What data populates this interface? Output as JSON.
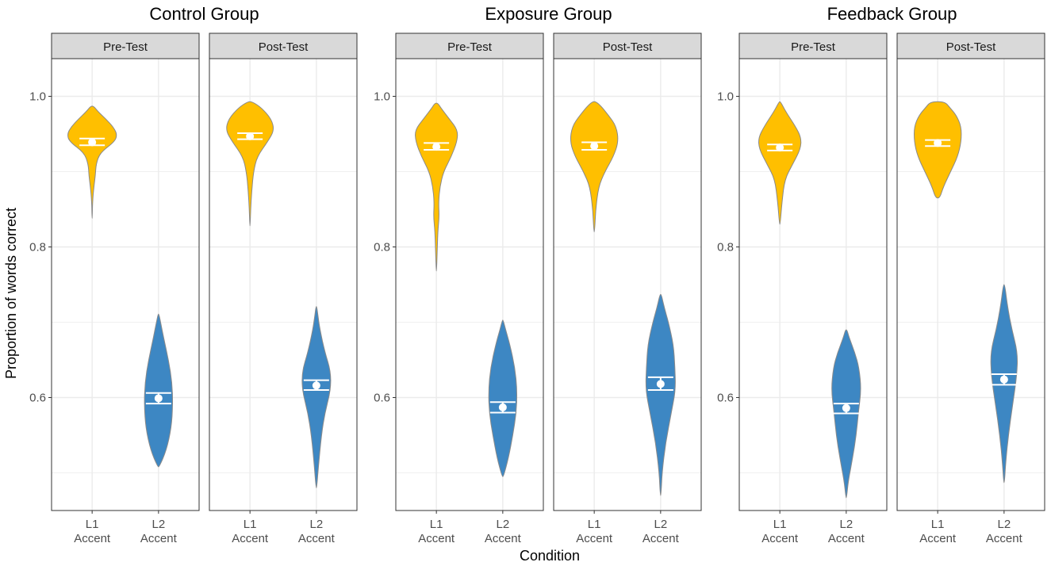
{
  "chart_data": {
    "type": "violin",
    "ylabel": "Proportion of words correct",
    "xlabel": "Condition",
    "ylim": [
      0.45,
      1.05
    ],
    "y_ticks": [
      {
        "value": 0.6,
        "label": "0.6"
      },
      {
        "value": 0.8,
        "label": "0.8"
      },
      {
        "value": 1.0,
        "label": "1.0"
      }
    ],
    "categories": [
      {
        "key": "L1",
        "line1": "L1",
        "line2": "Accent"
      },
      {
        "key": "L2",
        "line1": "L2",
        "line2": "Accent"
      }
    ],
    "colors": {
      "L1": "#FFBF00",
      "L2": "#3D87C3",
      "outline": "#8a8a8a",
      "strip": "#d9d9d9",
      "grid": "#ebebeb"
    },
    "groups": [
      {
        "title": "Control Group",
        "panels": [
          {
            "strip": "Pre-Test",
            "violins": [
              {
                "category": "L1",
                "mean": 0.939,
                "ci": [
                  0.935,
                  0.944
                ],
                "profile": [
                  [
                    0.838,
                    0.004
                  ],
                  [
                    0.86,
                    0.012
                  ],
                  [
                    0.88,
                    0.05
                  ],
                  [
                    0.895,
                    0.09
                  ],
                  [
                    0.91,
                    0.11
                  ],
                  [
                    0.925,
                    0.22
                  ],
                  [
                    0.94,
                    0.64
                  ],
                  [
                    0.95,
                    0.7
                  ],
                  [
                    0.96,
                    0.58
                  ],
                  [
                    0.97,
                    0.38
                  ],
                  [
                    0.98,
                    0.16
                  ],
                  [
                    0.987,
                    0.04
                  ]
                ]
              },
              {
                "category": "L2",
                "mean": 0.599,
                "ci": [
                  0.592,
                  0.606
                ],
                "profile": [
                  [
                    0.508,
                    0.02
                  ],
                  [
                    0.53,
                    0.22
                  ],
                  [
                    0.56,
                    0.36
                  ],
                  [
                    0.59,
                    0.4
                  ],
                  [
                    0.62,
                    0.38
                  ],
                  [
                    0.65,
                    0.28
                  ],
                  [
                    0.68,
                    0.14
                  ],
                  [
                    0.7,
                    0.06
                  ],
                  [
                    0.711,
                    0.01
                  ]
                ]
              }
            ]
          },
          {
            "strip": "Post-Test",
            "violins": [
              {
                "category": "L1",
                "mean": 0.947,
                "ci": [
                  0.943,
                  0.951
                ],
                "profile": [
                  [
                    0.828,
                    0.004
                  ],
                  [
                    0.85,
                    0.02
                  ],
                  [
                    0.875,
                    0.05
                  ],
                  [
                    0.9,
                    0.1
                  ],
                  [
                    0.92,
                    0.2
                  ],
                  [
                    0.94,
                    0.5
                  ],
                  [
                    0.955,
                    0.68
                  ],
                  [
                    0.97,
                    0.6
                  ],
                  [
                    0.985,
                    0.32
                  ],
                  [
                    0.993,
                    0.06
                  ]
                ]
              },
              {
                "category": "L2",
                "mean": 0.616,
                "ci": [
                  0.61,
                  0.623
                ],
                "profile": [
                  [
                    0.48,
                    0.01
                  ],
                  [
                    0.51,
                    0.06
                  ],
                  [
                    0.55,
                    0.14
                  ],
                  [
                    0.58,
                    0.24
                  ],
                  [
                    0.61,
                    0.4
                  ],
                  [
                    0.635,
                    0.4
                  ],
                  [
                    0.66,
                    0.24
                  ],
                  [
                    0.69,
                    0.1
                  ],
                  [
                    0.71,
                    0.04
                  ],
                  [
                    0.721,
                    0.01
                  ]
                ]
              }
            ]
          }
        ]
      },
      {
        "title": "Exposure Group",
        "panels": [
          {
            "strip": "Pre-Test",
            "violins": [
              {
                "category": "L1",
                "mean": 0.933,
                "ci": [
                  0.929,
                  0.938
                ],
                "profile": [
                  [
                    0.768,
                    0.004
                  ],
                  [
                    0.79,
                    0.02
                  ],
                  [
                    0.82,
                    0.04
                  ],
                  [
                    0.84,
                    0.08
                  ],
                  [
                    0.86,
                    0.06
                  ],
                  [
                    0.88,
                    0.1
                  ],
                  [
                    0.9,
                    0.2
                  ],
                  [
                    0.92,
                    0.42
                  ],
                  [
                    0.94,
                    0.58
                  ],
                  [
                    0.955,
                    0.6
                  ],
                  [
                    0.97,
                    0.36
                  ],
                  [
                    0.985,
                    0.12
                  ],
                  [
                    0.991,
                    0.04
                  ]
                ]
              },
              {
                "category": "L2",
                "mean": 0.587,
                "ci": [
                  0.58,
                  0.594
                ],
                "profile": [
                  [
                    0.495,
                    0.02
                  ],
                  [
                    0.52,
                    0.16
                  ],
                  [
                    0.55,
                    0.28
                  ],
                  [
                    0.58,
                    0.38
                  ],
                  [
                    0.61,
                    0.4
                  ],
                  [
                    0.64,
                    0.34
                  ],
                  [
                    0.67,
                    0.2
                  ],
                  [
                    0.69,
                    0.08
                  ],
                  [
                    0.703,
                    0.01
                  ]
                ]
              }
            ]
          },
          {
            "strip": "Post-Test",
            "violins": [
              {
                "category": "L1",
                "mean": 0.934,
                "ci": [
                  0.929,
                  0.939
                ],
                "profile": [
                  [
                    0.82,
                    0.01
                  ],
                  [
                    0.85,
                    0.04
                  ],
                  [
                    0.88,
                    0.12
                  ],
                  [
                    0.9,
                    0.3
                  ],
                  [
                    0.92,
                    0.54
                  ],
                  [
                    0.94,
                    0.68
                  ],
                  [
                    0.96,
                    0.62
                  ],
                  [
                    0.975,
                    0.4
                  ],
                  [
                    0.993,
                    0.08
                  ]
                ]
              },
              {
                "category": "L2",
                "mean": 0.618,
                "ci": [
                  0.61,
                  0.627
                ],
                "profile": [
                  [
                    0.47,
                    0.01
                  ],
                  [
                    0.5,
                    0.04
                  ],
                  [
                    0.54,
                    0.14
                  ],
                  [
                    0.58,
                    0.3
                  ],
                  [
                    0.61,
                    0.42
                  ],
                  [
                    0.64,
                    0.4
                  ],
                  [
                    0.67,
                    0.36
                  ],
                  [
                    0.7,
                    0.22
                  ],
                  [
                    0.72,
                    0.1
                  ],
                  [
                    0.737,
                    0.02
                  ]
                ]
              }
            ]
          }
        ]
      },
      {
        "title": "Feedback Group",
        "panels": [
          {
            "strip": "Pre-Test",
            "violins": [
              {
                "category": "L1",
                "mean": 0.932,
                "ci": [
                  0.928,
                  0.936
                ],
                "profile": [
                  [
                    0.83,
                    0.01
                  ],
                  [
                    0.86,
                    0.06
                  ],
                  [
                    0.89,
                    0.14
                  ],
                  [
                    0.91,
                    0.36
                  ],
                  [
                    0.93,
                    0.58
                  ],
                  [
                    0.945,
                    0.6
                  ],
                  [
                    0.96,
                    0.44
                  ],
                  [
                    0.98,
                    0.16
                  ],
                  [
                    0.993,
                    0.02
                  ]
                ]
              },
              {
                "category": "L2",
                "mean": 0.586,
                "ci": [
                  0.579,
                  0.592
                ],
                "profile": [
                  [
                    0.467,
                    0.01
                  ],
                  [
                    0.49,
                    0.06
                  ],
                  [
                    0.52,
                    0.18
                  ],
                  [
                    0.55,
                    0.28
                  ],
                  [
                    0.58,
                    0.34
                  ],
                  [
                    0.61,
                    0.42
                  ],
                  [
                    0.64,
                    0.36
                  ],
                  [
                    0.66,
                    0.24
                  ],
                  [
                    0.68,
                    0.08
                  ],
                  [
                    0.69,
                    0.02
                  ]
                ]
              }
            ]
          },
          {
            "strip": "Post-Test",
            "violins": [
              {
                "category": "L1",
                "mean": 0.938,
                "ci": [
                  0.934,
                  0.942
                ],
                "profile": [
                  [
                    0.865,
                    0.06
                  ],
                  [
                    0.88,
                    0.16
                  ],
                  [
                    0.9,
                    0.36
                  ],
                  [
                    0.92,
                    0.56
                  ],
                  [
                    0.94,
                    0.66
                  ],
                  [
                    0.96,
                    0.66
                  ],
                  [
                    0.975,
                    0.52
                  ],
                  [
                    0.985,
                    0.34
                  ],
                  [
                    0.993,
                    0.2
                  ]
                ]
              },
              {
                "category": "L2",
                "mean": 0.624,
                "ci": [
                  0.617,
                  0.631
                ],
                "profile": [
                  [
                    0.487,
                    0.01
                  ],
                  [
                    0.51,
                    0.04
                  ],
                  [
                    0.55,
                    0.12
                  ],
                  [
                    0.59,
                    0.24
                  ],
                  [
                    0.63,
                    0.36
                  ],
                  [
                    0.66,
                    0.38
                  ],
                  [
                    0.69,
                    0.22
                  ],
                  [
                    0.72,
                    0.1
                  ],
                  [
                    0.75,
                    0.02
                  ]
                ]
              }
            ]
          }
        ]
      }
    ]
  }
}
